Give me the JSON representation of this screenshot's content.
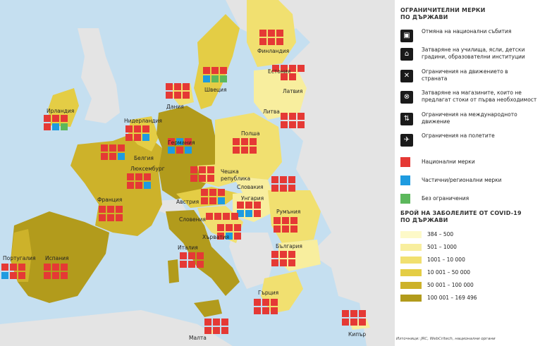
{
  "legend": {
    "measures_title_1": "ОГРАНИЧИТЕЛНИ МЕРКИ",
    "measures_title_2": "ПО ДЪРЖАВИ",
    "measures": [
      {
        "icon": "cancel-events-icon",
        "glyph": "▣",
        "label_1": "Отмяна на национални събития",
        "label_2": ""
      },
      {
        "icon": "school-icon",
        "glyph": "⌂",
        "label_1": "Затваряне на училища, ясли, детски",
        "label_2": "градини, образователни институции"
      },
      {
        "icon": "movement-icon",
        "glyph": "✕",
        "label_1": "Ограничения на движението в",
        "label_2": "страната"
      },
      {
        "icon": "shop-icon",
        "glyph": "⊗",
        "label_1": "Затваряне на магазините, които не",
        "label_2": "предлагат стоки от първа необходимост"
      },
      {
        "icon": "international-icon",
        "glyph": "⇅",
        "label_1": "Ограничения на международното",
        "label_2": "движение"
      },
      {
        "icon": "plane-icon",
        "glyph": "✈",
        "label_1": "Ограничения на полетите",
        "label_2": ""
      }
    ],
    "levels": [
      {
        "color": "#e53935",
        "label": "Национални мерки"
      },
      {
        "color": "#1e9be0",
        "label": "Частични/регионални мерки"
      },
      {
        "color": "#5cb85c",
        "label": "Без ограничения"
      }
    ],
    "cases_title_1": "БРОЙ НА ЗАБОЛЕЛИТЕ ОТ COVID-19",
    "cases_title_2": "ПО ДЪРЖАВИ",
    "cases": [
      {
        "color": "#fdf9c8",
        "label": "384 – 500"
      },
      {
        "color": "#f8ee9e",
        "label": "501 – 1000"
      },
      {
        "color": "#f1e070",
        "label": "1001 – 10 000"
      },
      {
        "color": "#e4cd45",
        "label": "10 001 – 50 000"
      },
      {
        "color": "#cdb22a",
        "label": "50 001 – 100 000"
      },
      {
        "color": "#b29b1c",
        "label": "100 001 – 169 496"
      }
    ]
  },
  "source": "Източници: JRC, WebCritech, национални органи",
  "colors": {
    "sea": "#c5dff0",
    "nonEU": "#e4e4e4",
    "red": "#e53935",
    "blue": "#1e9be0",
    "green": "#5cb85c"
  },
  "countries": {
    "ireland": "Ирландия",
    "netherlands": "Нидерландия",
    "belgium": "Белгия",
    "luxembourg": "Люксембург",
    "france": "Франция",
    "portugal": "Португалия",
    "spain": "Испания",
    "germany": "Германия",
    "denmark": "Дания",
    "sweden": "Швеция",
    "finland": "Финландия",
    "estonia": "Естония",
    "latvia": "Латвия",
    "lithuania": "Литва",
    "poland": "Полша",
    "czech_1": "Чешка",
    "czech_2": "република",
    "slovakia": "Словакия",
    "austria": "Австрия",
    "hungary": "Унгария",
    "slovenia": "Словения",
    "croatia": "Хърватия",
    "italy": "Италия",
    "romania": "Румъния",
    "bulgaria": "България",
    "greece": "Гърция",
    "malta": "Малта",
    "cyprus": "Кипър"
  }
}
